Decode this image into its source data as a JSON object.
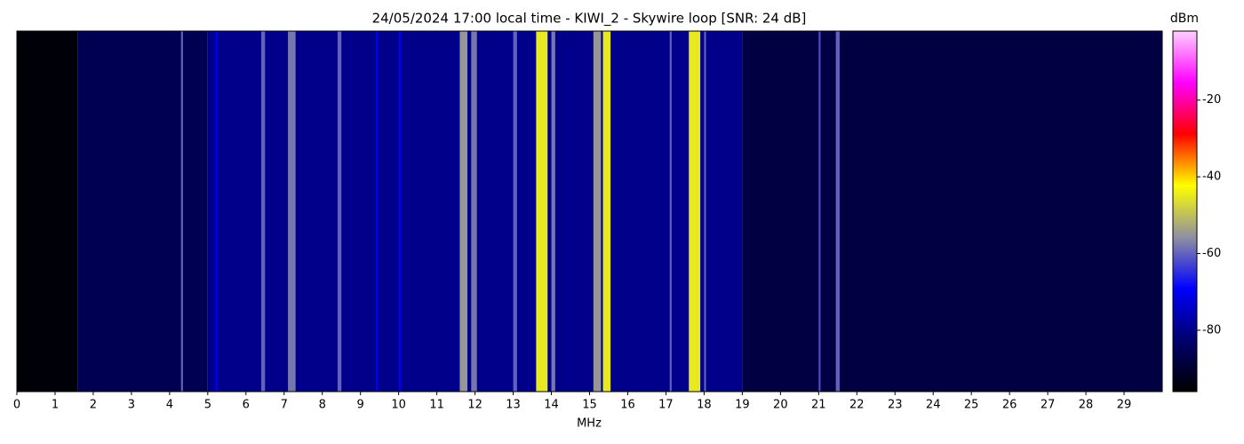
{
  "chart_data": {
    "type": "spectrogram",
    "title": "24/05/2024 17:00 local time - KIWI_2 - Skywire loop [SNR: 24 dB]",
    "xlabel": "MHz",
    "colorbar_label": "dBm",
    "xlim": [
      0,
      30
    ],
    "xticks": [
      0,
      1,
      2,
      3,
      4,
      5,
      6,
      7,
      8,
      9,
      10,
      11,
      12,
      13,
      14,
      15,
      16,
      17,
      18,
      19,
      20,
      21,
      22,
      23,
      24,
      25,
      26,
      27,
      28,
      29
    ],
    "clim": [
      -96,
      -2
    ],
    "cticks": [
      -20,
      -40,
      -60,
      -80
    ],
    "colormap": [
      "#000000",
      "#00006e",
      "#0000ff",
      "#9090a0",
      "#ffff00",
      "#ff0000",
      "#ff00ff",
      "#ffd0ff"
    ],
    "bands": {
      "x0": [
        0,
        1.6,
        5,
        19,
        5.2,
        9.4,
        10.0,
        4.3,
        6.4,
        7.1,
        8.4,
        11.6,
        11.9,
        13.0,
        13.6,
        14.0,
        15.1,
        15.35,
        17.1,
        17.6,
        18.0,
        21.0,
        21.45
      ],
      "x1": [
        1.6,
        5,
        19,
        30,
        5.25,
        9.45,
        10.05,
        4.35,
        6.5,
        7.3,
        8.5,
        11.8,
        12.05,
        13.1,
        13.9,
        14.1,
        15.3,
        15.55,
        17.15,
        17.9,
        18.05,
        21.05,
        21.55
      ],
      "values": [
        -95,
        -86,
        -80,
        -88,
        -70,
        -70,
        -70,
        -60,
        -60,
        -58,
        -60,
        -55,
        -58,
        -60,
        -45,
        -58,
        -55,
        -45,
        -60,
        -45,
        -60,
        -62,
        -60
      ]
    }
  }
}
